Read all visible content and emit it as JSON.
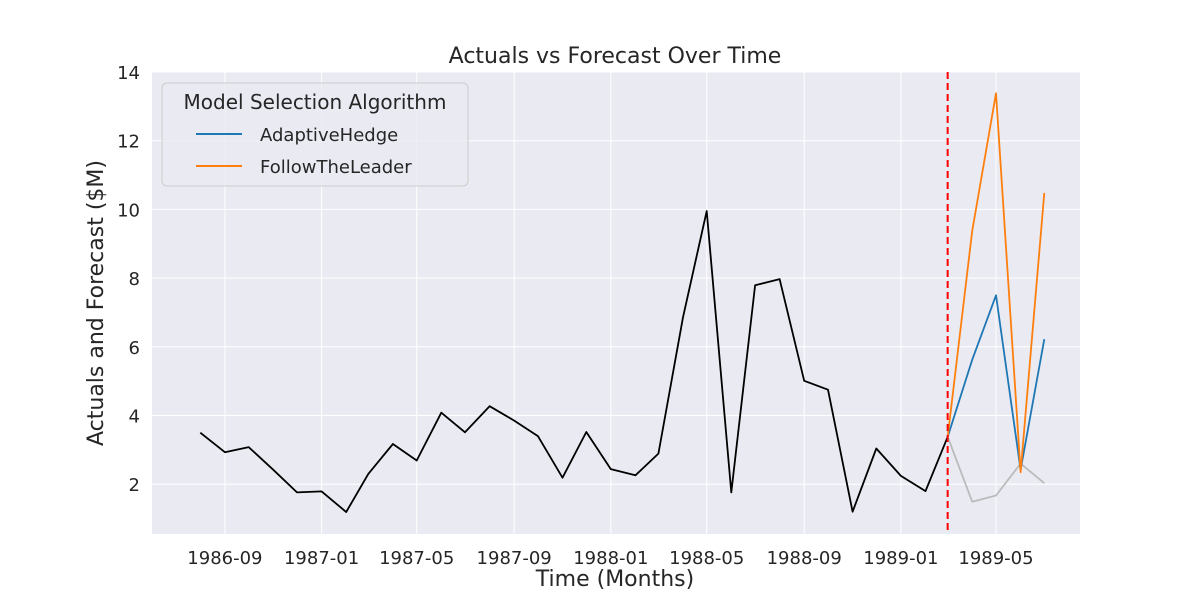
{
  "chart_data": {
    "type": "line",
    "title": "Actuals vs Forecast Over Time",
    "xlabel": "Time (Months)",
    "ylabel": "Actuals and Forecast ($M)",
    "x_axis_type": "date",
    "xlim": [
      "1986-06-01",
      "1989-08-15"
    ],
    "ylim": [
      0.55,
      14.0
    ],
    "x_ticks": [
      "1986-09",
      "1987-01",
      "1987-05",
      "1987-09",
      "1988-01",
      "1988-05",
      "1988-09",
      "1989-01",
      "1989-05"
    ],
    "y_ticks": [
      2,
      4,
      6,
      8,
      10,
      12,
      14
    ],
    "grid": true,
    "legend": {
      "title": "Model Selection Algorithm",
      "placement": "top-left",
      "entries": [
        "AdaptiveHedge",
        "FollowTheLeader"
      ]
    },
    "vertical_line": {
      "x": "1989-03",
      "color": "#ff0000",
      "style": "dashed"
    },
    "series": [
      {
        "color": "#000000",
        "x": [
          "1986-08",
          "1986-09",
          "1986-10",
          "1986-11",
          "1986-12",
          "1987-01",
          "1987-02",
          "1987-03",
          "1987-04",
          "1987-05",
          "1987-06",
          "1987-07",
          "1987-08",
          "1987-09",
          "1987-10",
          "1987-11",
          "1987-12",
          "1988-01",
          "1988-02",
          "1988-03",
          "1988-04",
          "1988-05",
          "1988-06",
          "1988-07",
          "1988-08",
          "1988-09",
          "1988-10",
          "1988-11",
          "1988-12",
          "1989-01",
          "1989-02",
          "1989-03"
        ],
        "y": [
          3.5,
          2.93,
          3.08,
          2.42,
          1.76,
          1.79,
          1.19,
          2.3,
          3.17,
          2.69,
          4.08,
          3.51,
          4.27,
          3.85,
          3.4,
          2.19,
          3.52,
          2.44,
          2.26,
          2.89,
          6.86,
          9.95,
          1.76,
          7.79,
          7.97,
          5.01,
          4.75,
          1.2,
          3.04,
          2.24,
          1.8,
          3.38
        ]
      },
      {
        "color": "#bbbbbb",
        "x": [
          "1989-03",
          "1989-04",
          "1989-05",
          "1989-06",
          "1989-07"
        ],
        "y": [
          3.38,
          1.49,
          1.67,
          2.6,
          2.03
        ]
      },
      {
        "name": "AdaptiveHedge",
        "color": "#1f77b4",
        "x": [
          "1989-03",
          "1989-04",
          "1989-05",
          "1989-06",
          "1989-07"
        ],
        "y": [
          3.38,
          5.62,
          7.5,
          2.42,
          6.22
        ]
      },
      {
        "name": "FollowTheLeader",
        "color": "#ff7f0e",
        "x": [
          "1989-03",
          "1989-04",
          "1989-05",
          "1989-06",
          "1989-07"
        ],
        "y": [
          3.38,
          9.37,
          13.38,
          2.35,
          10.48
        ]
      }
    ]
  }
}
